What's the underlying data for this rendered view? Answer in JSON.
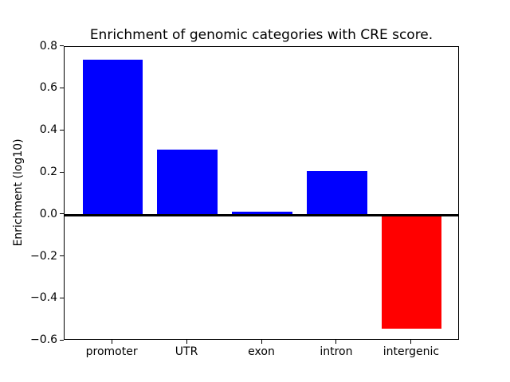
{
  "chart_data": {
    "type": "bar",
    "title": "Enrichment of genomic categories with CRE score.",
    "xlabel": "",
    "ylabel": "Enrichment (log10)",
    "categories": [
      "promoter",
      "UTR",
      "exon",
      "intron",
      "intergenic"
    ],
    "values": [
      0.74,
      0.31,
      0.015,
      0.21,
      -0.54
    ],
    "bar_colors": [
      "#0000ff",
      "#0000ff",
      "#0000ff",
      "#0000ff",
      "#ff0000"
    ],
    "positive_color": "#0000ff",
    "negative_color": "#ff0000",
    "ylim": [
      -0.6,
      0.8
    ],
    "yticks": [
      0.8,
      0.6,
      0.4,
      0.2,
      0.0,
      -0.2,
      -0.4,
      -0.6
    ],
    "ytick_format_decimals": 1,
    "zero_line": {
      "color": "#000000",
      "width": 3
    },
    "axis_color": "#000000",
    "text_color": "#000000",
    "background_color": "#ffffff",
    "grid": false,
    "legend_position": "none"
  }
}
